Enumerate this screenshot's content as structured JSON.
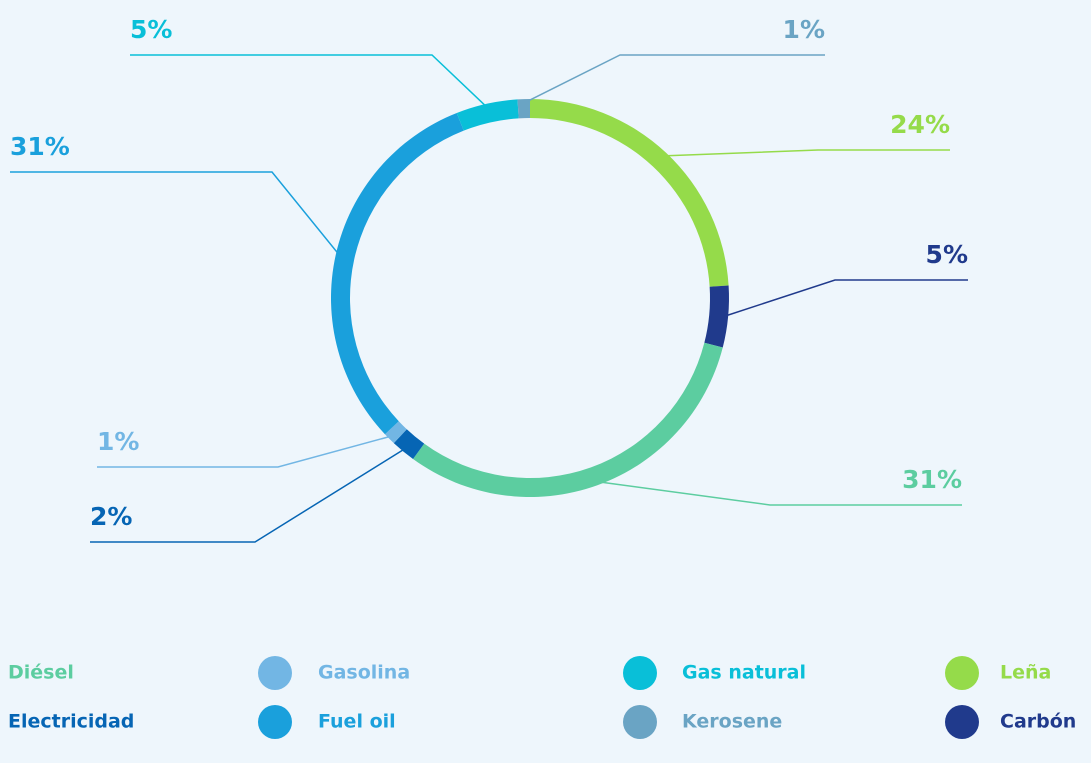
{
  "chart_data": {
    "type": "pie",
    "categories": [
      "Leña",
      "Carbón",
      "Diésel",
      "Electricidad",
      "Gasolina",
      "Fuel oil",
      "Gas natural",
      "Kerosene"
    ],
    "values": [
      24,
      5,
      31,
      2,
      1,
      31,
      5,
      1
    ],
    "value_labels": [
      "24%",
      "5%",
      "31%",
      "2%",
      "1%",
      "31%",
      "5%",
      "1%"
    ],
    "colors": [
      "#95db4a",
      "#203a8c",
      "#5ccda0",
      "#0665b4",
      "#72b6e4",
      "#1aa0dc",
      "#09bfd8",
      "#6aa4c4"
    ],
    "donut": true,
    "legend": "bottom"
  }
}
